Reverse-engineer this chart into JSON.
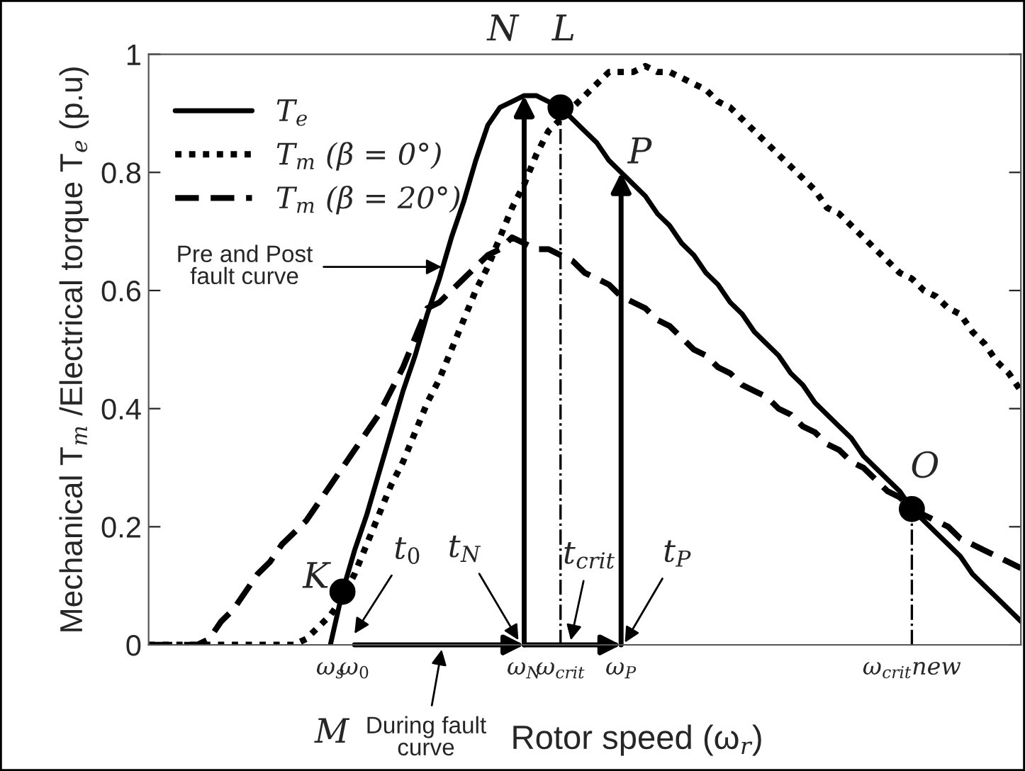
{
  "chart_data": {
    "type": "line",
    "xlabel": "Rotor speed (ω$_{r}$)",
    "ylabel": "Mechanical T$_{m}$ /Electrical torque T$_{e}$ (p.u)",
    "categories": [
      null,
      null,
      null,
      null,
      null,
      null,
      null,
      null,
      null,
      null,
      null,
      null,
      null,
      null,
      null,
      "ω$_{s}$",
      null,
      "ω$_{0}$",
      null,
      null,
      null,
      null,
      null,
      null,
      null,
      null,
      null,
      null,
      null,
      null,
      null,
      "ω$_{N}$",
      null,
      null,
      "ω$_{crit}$",
      null,
      null,
      null,
      null,
      "ω$_{P}$",
      null,
      null,
      null,
      null,
      null,
      null,
      null,
      null,
      null,
      null,
      null,
      null,
      null,
      null,
      null,
      null,
      null,
      null,
      null,
      null,
      null,
      null,
      null,
      "ω$_{crit}$new",
      null,
      null,
      null,
      null,
      null,
      null,
      null,
      null,
      null
    ],
    "ylim": [
      0,
      1
    ],
    "yticks": [
      0,
      0.2,
      0.4,
      0.6,
      0.8,
      1
    ],
    "legend": "top left",
    "series": [
      {
        "name": "T$_{e}$",
        "color": "#000000",
        "line_style": "solid",
        "values": [
          null,
          null,
          null,
          null,
          null,
          null,
          null,
          null,
          null,
          null,
          null,
          null,
          null,
          null,
          null,
          0,
          0.09,
          0.16,
          0.22,
          0.29,
          0.36,
          0.43,
          0.49,
          0.56,
          0.62,
          0.69,
          0.75,
          0.82,
          0.88,
          0.91,
          0.92,
          0.93,
          0.93,
          0.92,
          0.91,
          0.89,
          0.87,
          0.85,
          0.82,
          0.8,
          0.78,
          0.76,
          0.73,
          0.71,
          0.68,
          0.66,
          0.63,
          0.61,
          0.58,
          0.56,
          0.53,
          0.51,
          0.49,
          0.46,
          0.44,
          0.41,
          0.39,
          0.37,
          0.35,
          0.32,
          0.3,
          0.28,
          0.26,
          0.23,
          0.21,
          0.19,
          0.17,
          0.15,
          0.12,
          0.1,
          0.08,
          0.06,
          0.04
        ]
      },
      {
        "name": "T$_{m}$ (β = 0°)",
        "color": "#000000",
        "line_style": "dotted",
        "values": [
          0,
          0,
          0,
          0,
          0,
          0,
          0,
          0,
          0,
          0,
          0,
          0,
          0,
          0.01,
          0.03,
          0.05,
          0.08,
          0.12,
          0.17,
          0.22,
          0.27,
          0.31,
          0.36,
          0.41,
          0.45,
          0.5,
          0.55,
          0.6,
          0.64,
          0.69,
          0.74,
          0.78,
          0.83,
          0.87,
          0.89,
          0.91,
          0.93,
          0.95,
          0.97,
          0.97,
          0.97,
          0.98,
          0.97,
          0.97,
          0.96,
          0.95,
          0.94,
          0.92,
          0.91,
          0.89,
          0.87,
          0.85,
          0.83,
          0.81,
          0.79,
          0.77,
          0.74,
          0.73,
          0.71,
          0.69,
          0.67,
          0.65,
          0.63,
          0.62,
          0.6,
          0.59,
          0.57,
          0.56,
          0.53,
          0.51,
          0.48,
          0.46,
          0.43
        ]
      },
      {
        "name": "T$_{m}$ (β = 20°)",
        "color": "#000000",
        "line_style": "dashed",
        "values": [
          0,
          0,
          0,
          0,
          0,
          0.01,
          0.04,
          0.06,
          0.09,
          0.12,
          0.14,
          0.17,
          0.19,
          0.21,
          0.24,
          0.27,
          0.3,
          0.33,
          0.36,
          0.39,
          0.43,
          0.47,
          0.52,
          0.57,
          0.58,
          0.6,
          0.62,
          0.64,
          0.66,
          0.67,
          0.69,
          0.68,
          0.67,
          0.67,
          0.66,
          0.65,
          0.63,
          0.62,
          0.61,
          0.59,
          0.58,
          0.57,
          0.55,
          0.54,
          0.52,
          0.5,
          0.49,
          0.47,
          0.46,
          0.44,
          0.43,
          0.42,
          0.4,
          0.39,
          0.37,
          0.36,
          0.34,
          0.33,
          0.31,
          0.3,
          0.28,
          0.26,
          0.25,
          0.23,
          0.22,
          0.21,
          0.2,
          0.18,
          0.17,
          0.16,
          0.15,
          0.14,
          0.13
        ]
      },
      {
        "type": "scatter",
        "color": "#000000",
        "marker": "circle",
        "values": [
          null,
          null,
          null,
          null,
          null,
          null,
          null,
          null,
          null,
          null,
          null,
          null,
          null,
          null,
          null,
          null,
          0.09,
          null,
          null,
          null,
          null,
          null,
          null,
          null,
          null,
          null,
          null,
          null,
          null,
          null,
          null,
          null,
          null,
          null,
          0.91,
          null,
          null,
          null,
          null,
          null,
          null,
          null,
          null,
          null,
          null,
          null,
          null,
          null,
          null,
          null,
          null,
          null,
          null,
          null,
          null,
          null,
          null,
          null,
          null,
          null,
          null,
          null,
          null,
          0.23,
          null,
          null,
          null,
          null,
          null,
          null,
          null,
          null,
          null
        ]
      }
    ],
    "annotations": [
      "N",
      "L",
      "P",
      "K",
      "O",
      "M",
      "t$_{0}$",
      "t$_{N}$",
      "t$_{crit}$",
      "t$_{P}$",
      "Pre and Post\nfault curve",
      "During fault\ncurve"
    ]
  }
}
